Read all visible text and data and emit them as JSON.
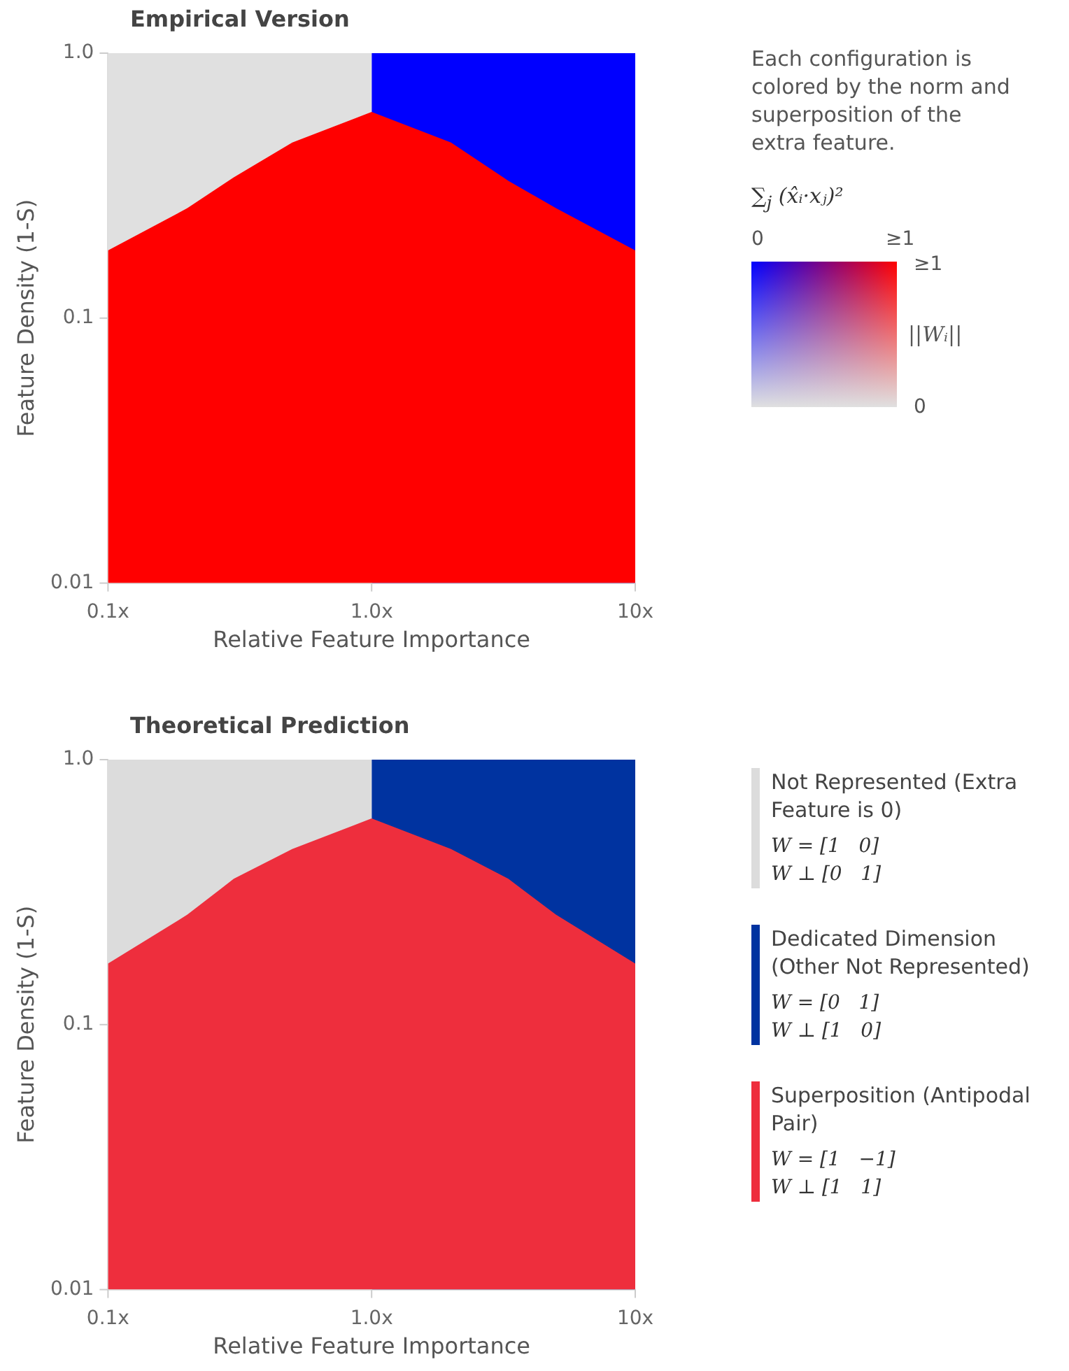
{
  "chart_data": [
    {
      "type": "area",
      "title": "Empirical Version",
      "xlabel": "Relative Feature Importance",
      "ylabel": "Feature Density (1-S)",
      "log": "xy",
      "xlim": [
        0.1,
        10
      ],
      "xticks": [
        {
          "value": 0.1,
          "label": "0.1x"
        },
        {
          "value": 1,
          "label": "1.0x"
        },
        {
          "value": 10,
          "label": "10x"
        }
      ],
      "ylim": [
        0.01,
        1
      ],
      "yticks": [
        {
          "value": 0.01,
          "label": "0.01"
        },
        {
          "value": 0.1,
          "label": "0.1"
        },
        {
          "value": 1,
          "label": "1.0"
        }
      ],
      "series": [
        {
          "color": "#e0e0e0",
          "x": [
            0.1,
            1
          ],
          "values": [
            1,
            1
          ]
        },
        {
          "color": "#0000ff",
          "x": [
            1,
            10
          ],
          "values": [
            1,
            1
          ]
        },
        {
          "color": "#ff0000",
          "x": [
            0.1,
            0.2,
            0.3,
            0.5,
            1,
            2,
            3.3,
            5,
            10
          ],
          "values": [
            0.18,
            0.26,
            0.34,
            0.46,
            0.6,
            0.46,
            0.33,
            0.26,
            0.18
          ]
        }
      ],
      "annotations": [
        "Each configuration is colored by the norm and superposition of the extra feature.",
        "∑$_{j}$ (x̂ᵢ·xⱼ)²",
        "0",
        "≥1",
        "≥1",
        "||Wᵢ||",
        "0"
      ]
    },
    {
      "type": "area",
      "title": "Theoretical Prediction",
      "xlabel": "Relative Feature Importance",
      "ylabel": "Feature Density (1-S)",
      "log": "xy",
      "legend": "right",
      "xlim": [
        0.1,
        10
      ],
      "xticks": [
        {
          "value": 0.1,
          "label": "0.1x"
        },
        {
          "value": 1,
          "label": "1.0x"
        },
        {
          "value": 10,
          "label": "10x"
        }
      ],
      "ylim": [
        0.01,
        1
      ],
      "yticks": [
        {
          "value": 0.01,
          "label": "0.01"
        },
        {
          "value": 0.1,
          "label": "0.1"
        },
        {
          "value": 1,
          "label": "1.0"
        }
      ],
      "series": [
        {
          "name": "Not Represented (Extra Feature is 0)",
          "color": "#dcdcdc",
          "x": [
            0.1,
            1
          ],
          "values": [
            1,
            1
          ]
        },
        {
          "name": "Dedicated Dimension (Other Not Represented)",
          "color": "#0033a0",
          "x": [
            1,
            10
          ],
          "values": [
            1,
            1
          ]
        },
        {
          "name": "Superposition (Antipodal Pair)",
          "color": "#ee2e3d",
          "x": [
            0.1,
            0.2,
            0.3,
            0.5,
            1,
            2,
            3.3,
            5,
            10
          ],
          "values": [
            0.17,
            0.26,
            0.355,
            0.46,
            0.6,
            0.46,
            0.355,
            0.26,
            0.17
          ]
        }
      ],
      "annotations": [
        "W = [1   0]",
        "W ⊥ [0   1]",
        "W = [0   1]",
        "W ⊥ [1   0]",
        "W = [1   −1]",
        "W ⊥ [1   1]"
      ]
    }
  ]
}
